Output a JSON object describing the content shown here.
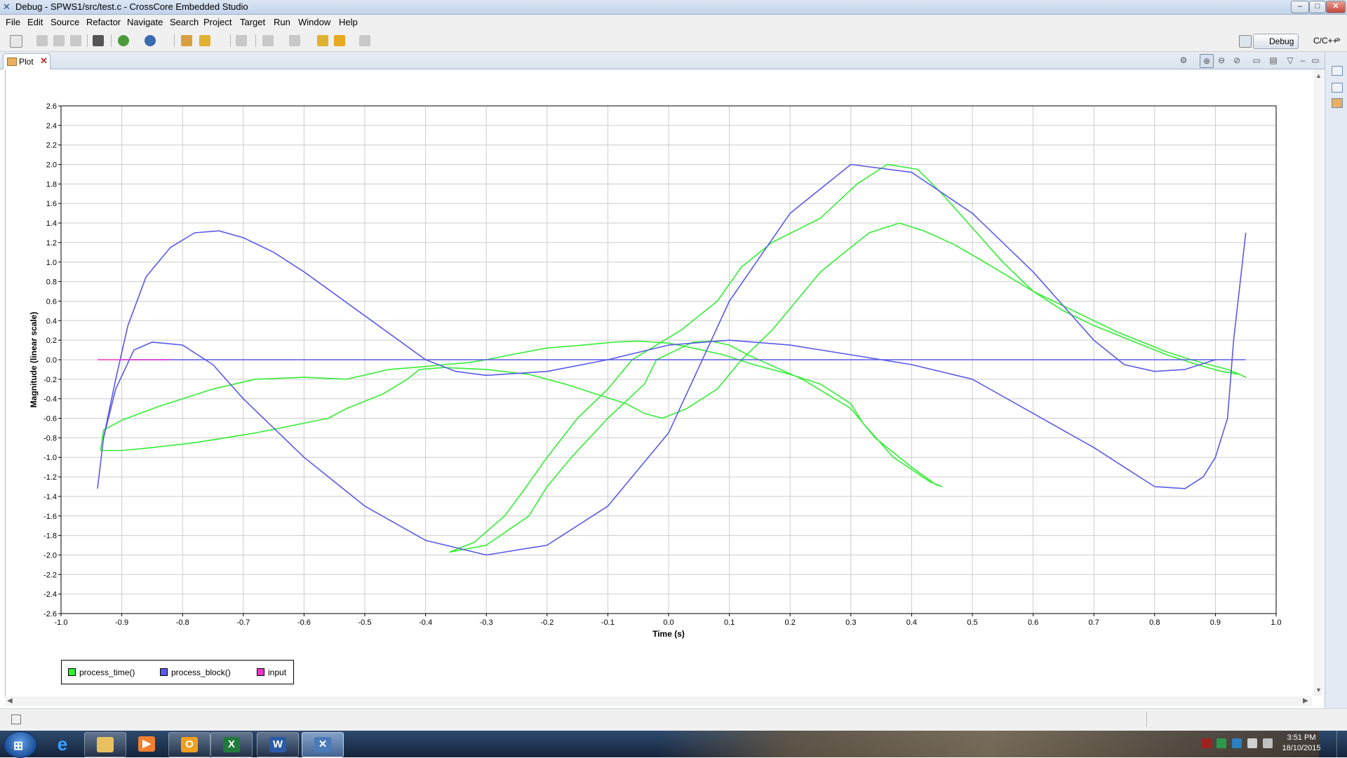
{
  "window": {
    "title": "Debug - SPWS1/src/test.c - CrossCore Embedded Studio",
    "controls": [
      "–",
      "□",
      "✕"
    ]
  },
  "menu": [
    "File",
    "Edit",
    "Source",
    "Refactor",
    "Navigate",
    "Search",
    "Project",
    "Target",
    "Run",
    "Window",
    "Help"
  ],
  "perspectives": {
    "active": "Debug",
    "other": "C/C++",
    "more": "»"
  },
  "tab": {
    "label": "Plot",
    "close": "✕"
  },
  "colors": {
    "process_time": "#33ee33",
    "process_block": "#5a5ae8",
    "input": "#ee33cc",
    "grid": "#cccccc"
  },
  "chart_data": {
    "type": "line",
    "xlabel": "Time (s)",
    "ylabel": "Magnitude (linear scale)",
    "xlim": [
      -1.0,
      1.0
    ],
    "ylim": [
      -2.6,
      2.6
    ],
    "grid": true,
    "legend_position": "bottom-left",
    "xticks": [
      "-1.0",
      "-0.9",
      "-0.8",
      "-0.7",
      "-0.6",
      "-0.5",
      "-0.4",
      "-0.3",
      "-0.2",
      "-0.1",
      "0.0",
      "0.1",
      "0.2",
      "0.3",
      "0.4",
      "0.5",
      "0.6",
      "0.7",
      "0.8",
      "0.9",
      "1.0"
    ],
    "yticks": [
      "2.6",
      "2.4",
      "2.2",
      "2.0",
      "1.8",
      "1.6",
      "1.4",
      "1.2",
      "1.0",
      "0.8",
      "0.6",
      "0.4",
      "0.2",
      "0.0",
      "-0.2",
      "-0.4",
      "-0.6",
      "-0.8",
      "-1.0",
      "-1.2",
      "-1.4",
      "-1.6",
      "-1.8",
      "-2.0",
      "-2.2",
      "-2.4",
      "-2.6"
    ],
    "series": [
      {
        "name": "process_time()",
        "color": "#33ee33",
        "x": [
          -0.935,
          -0.93,
          -0.9,
          -0.84,
          -0.75,
          -0.68,
          -0.6,
          -0.53,
          -0.46,
          -0.4,
          -0.37,
          -0.33,
          -0.3,
          -0.26,
          -0.2,
          -0.14,
          -0.09,
          -0.05,
          0.0,
          0.04,
          0.09,
          0.14,
          0.2,
          0.25,
          0.3,
          0.32,
          0.37,
          0.43,
          0.45,
          0.44,
          0.4,
          0.34,
          0.3,
          0.22,
          0.13,
          0.1,
          0.07,
          0.04,
          0.02,
          -0.02,
          -0.04,
          -0.1,
          -0.16,
          -0.2,
          -0.23,
          -0.3,
          -0.36,
          -0.32,
          -0.27,
          -0.24,
          -0.2,
          -0.15,
          -0.1,
          -0.06,
          0.02,
          0.08,
          0.12,
          0.17,
          0.25,
          0.31,
          0.36,
          0.41,
          0.45,
          0.5,
          0.55,
          0.6,
          0.65,
          0.7,
          0.76,
          0.82,
          0.87,
          0.91,
          0.94,
          0.95,
          0.94,
          0.92,
          0.89,
          0.86,
          0.82,
          0.78,
          0.74,
          0.7,
          0.65,
          0.6,
          0.56,
          0.52,
          0.47,
          0.42,
          0.38,
          0.33,
          0.29,
          0.25,
          0.21,
          0.17,
          0.12,
          0.08,
          0.03,
          -0.01,
          -0.04,
          -0.07,
          -0.12,
          -0.17,
          -0.23,
          -0.3,
          -0.37,
          -0.41,
          -0.43,
          -0.47,
          -0.53,
          -0.56,
          -0.6,
          -0.64,
          -0.68,
          -0.73,
          -0.78,
          -0.85,
          -0.9,
          -0.935
        ],
        "y": [
          -0.93,
          -0.72,
          -0.62,
          -0.48,
          -0.3,
          -0.2,
          -0.18,
          -0.2,
          -0.1,
          -0.07,
          -0.05,
          -0.03,
          0.0,
          0.05,
          0.12,
          0.15,
          0.18,
          0.19,
          0.17,
          0.12,
          0.05,
          -0.05,
          -0.15,
          -0.25,
          -0.45,
          -0.65,
          -1.0,
          -1.25,
          -1.3,
          -1.28,
          -1.1,
          -0.8,
          -0.5,
          -0.2,
          0.05,
          0.15,
          0.19,
          0.18,
          0.12,
          0.0,
          -0.25,
          -0.6,
          -1.0,
          -1.3,
          -1.6,
          -1.9,
          -1.97,
          -1.87,
          -1.6,
          -1.35,
          -1.0,
          -0.6,
          -0.3,
          0.0,
          0.3,
          0.6,
          0.95,
          1.2,
          1.45,
          1.8,
          2.0,
          1.95,
          1.7,
          1.35,
          1.0,
          0.7,
          0.5,
          0.35,
          0.2,
          0.05,
          -0.05,
          -0.12,
          -0.15,
          -0.18,
          -0.15,
          -0.1,
          -0.05,
          0.0,
          0.08,
          0.18,
          0.28,
          0.4,
          0.55,
          0.7,
          0.85,
          1.0,
          1.18,
          1.32,
          1.4,
          1.3,
          1.1,
          0.9,
          0.6,
          0.3,
          0.0,
          -0.3,
          -0.5,
          -0.6,
          -0.55,
          -0.45,
          -0.35,
          -0.25,
          -0.15,
          -0.1,
          -0.08,
          -0.1,
          -0.2,
          -0.35,
          -0.5,
          -0.6,
          -0.65,
          -0.7,
          -0.75,
          -0.8,
          -0.85,
          -0.9,
          -0.93,
          -0.93
        ]
      },
      {
        "name": "process_block()",
        "color": "#5a5ae8",
        "x": [
          -0.94,
          -0.93,
          -0.91,
          -0.89,
          -0.86,
          -0.82,
          -0.78,
          -0.74,
          -0.7,
          -0.65,
          -0.6,
          -0.5,
          -0.4,
          -0.35,
          -0.3,
          -0.2,
          -0.1,
          0.0,
          0.1,
          0.2,
          0.3,
          0.35,
          0.4,
          0.5,
          0.6,
          0.7,
          0.75,
          0.8,
          0.85,
          0.88,
          0.9,
          0.92,
          0.93,
          0.95
        ],
        "y": [
          -1.32,
          -0.8,
          -0.2,
          0.35,
          0.85,
          1.15,
          1.3,
          1.32,
          1.25,
          1.1,
          0.9,
          0.45,
          0.0,
          -0.12,
          -0.16,
          -0.12,
          0.0,
          0.15,
          0.2,
          0.15,
          0.05,
          0.0,
          -0.05,
          -0.2,
          -0.55,
          -0.9,
          -1.1,
          -1.3,
          -1.32,
          -1.2,
          -1.0,
          -0.6,
          0.2,
          1.3
        ]
      },
      {
        "name": "process_block()",
        "color": "#5a5ae8",
        "x": [
          -0.93,
          -0.91,
          -0.88,
          -0.85,
          -0.8,
          -0.75,
          -0.7,
          -0.6,
          -0.5,
          -0.4,
          -0.3,
          -0.2,
          -0.1,
          0.0,
          0.1,
          0.2,
          0.3,
          0.4,
          0.5,
          0.6,
          0.7,
          0.75,
          0.8,
          0.85,
          0.9
        ],
        "y": [
          -0.8,
          -0.3,
          0.1,
          0.18,
          0.15,
          -0.05,
          -0.4,
          -1.0,
          -1.5,
          -1.85,
          -2.0,
          -1.9,
          -1.5,
          -0.75,
          0.6,
          1.5,
          2.0,
          1.92,
          1.5,
          0.9,
          0.2,
          -0.05,
          -0.12,
          -0.1,
          0.0
        ]
      },
      {
        "name": "process_block()",
        "color": "#5a5ae8",
        "x": [
          -0.9,
          0.95
        ],
        "y": [
          0.0,
          0.0
        ]
      },
      {
        "name": "input",
        "color": "#ee33cc",
        "x": [
          -0.94,
          -0.82
        ],
        "y": [
          0.0,
          0.0
        ]
      }
    ]
  },
  "legend": [
    {
      "label": "process_time()",
      "color": "#33ee33"
    },
    {
      "label": "process_block()",
      "color": "#5a5ae8"
    },
    {
      "label": "input",
      "color": "#ee33cc"
    }
  ],
  "taskbar": {
    "clock_time": "3:51 PM",
    "clock_date": "18/10/2015"
  }
}
